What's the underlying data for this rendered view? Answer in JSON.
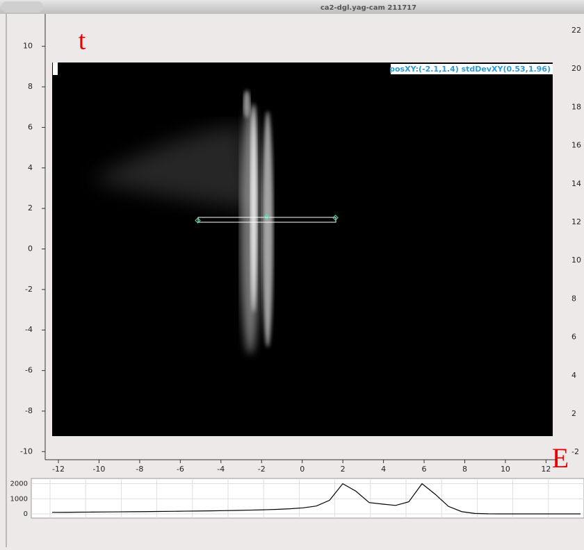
{
  "window": {
    "title": "ca2-dgl.yag-cam 211717"
  },
  "image_plot": {
    "xlim": [
      -12.65,
      12.5
    ],
    "ylim": [
      -10.4,
      11.6
    ],
    "xticks": [
      -12,
      -10,
      -8,
      -6,
      -4,
      -2,
      0,
      2,
      4,
      6,
      8,
      10,
      12
    ],
    "yticks": [
      10,
      8,
      6,
      4,
      2,
      0,
      -2,
      -4,
      -6,
      -8,
      -10
    ],
    "right_tick_labels": [
      "22",
      "20",
      "18",
      "16",
      "14",
      "12",
      "10",
      "8",
      "6",
      "4",
      "2",
      "-2"
    ],
    "overlay": "posXY:(-2.1,1.4) stdDevXY(0.53,1.96)",
    "label_t": "t",
    "label_e": "E"
  },
  "profile": {
    "type": "line",
    "ylim": [
      0,
      2300
    ],
    "yticks": [
      0,
      1000,
      2000
    ],
    "values": [
      100,
      105,
      115,
      120,
      130,
      135,
      145,
      150,
      160,
      170,
      180,
      190,
      200,
      215,
      230,
      250,
      270,
      300,
      340,
      400,
      520,
      900,
      2000,
      1500,
      750,
      650,
      560,
      800,
      2000,
      1300,
      500,
      150,
      30,
      5,
      0,
      0,
      0,
      0,
      0,
      0,
      0
    ],
    "color": "#000000"
  }
}
